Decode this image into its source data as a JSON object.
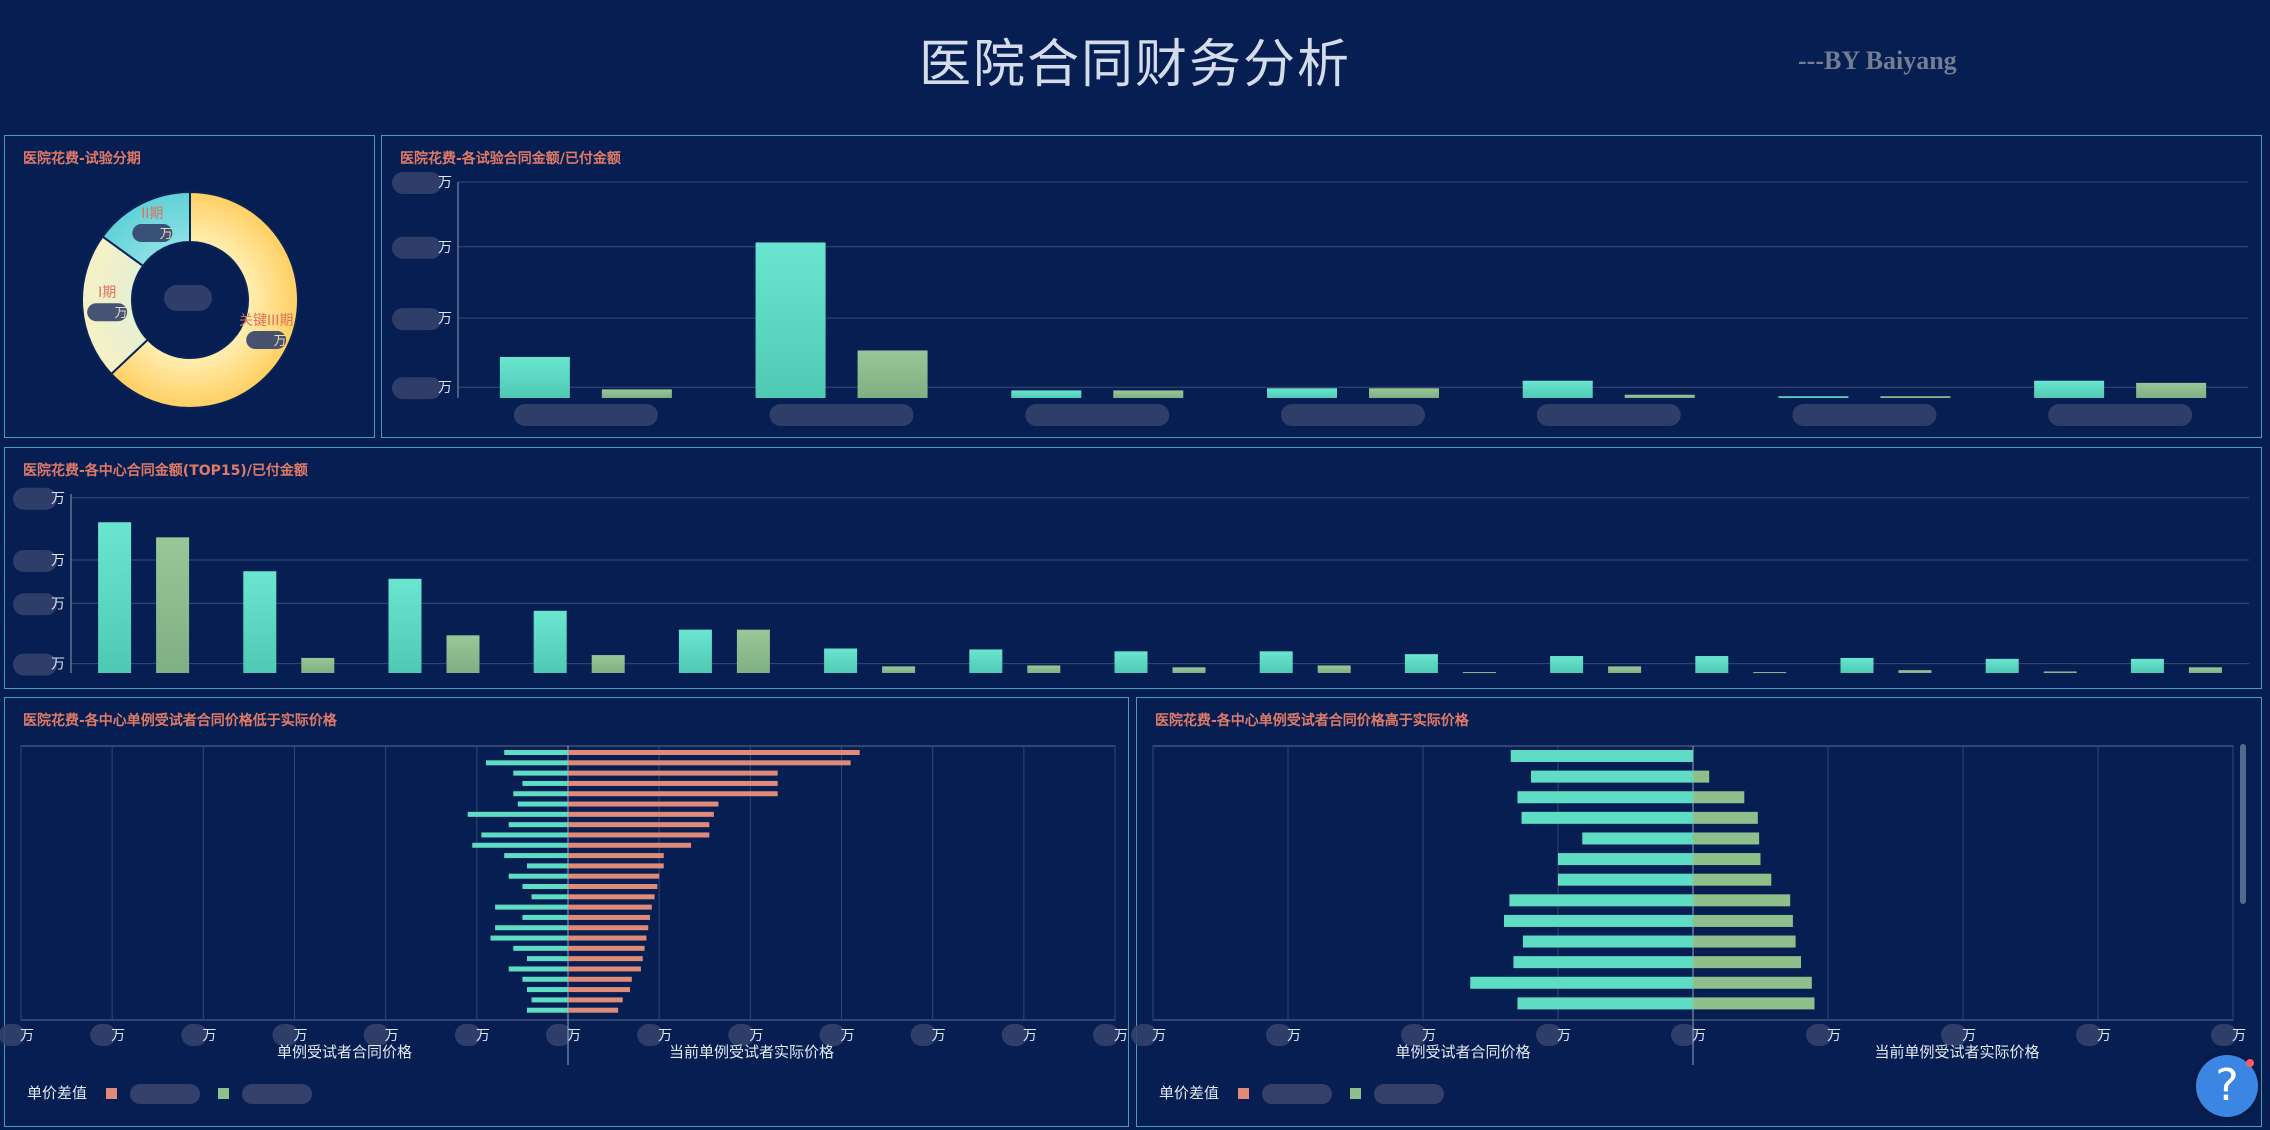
{
  "header": {
    "title": "医院合同财务分析",
    "byline": "---BY Baiyang"
  },
  "colors": {
    "background": "#061e52",
    "panel_border": "#4a9fb2",
    "panel_title": "#e07a67",
    "teal": "#5fdcc4",
    "olive": "#8fbf8a",
    "salmon": "#e08a78",
    "gold": "#ffd36b"
  },
  "panels": {
    "donut": {
      "title": "医院花费-试验分期"
    },
    "trials": {
      "title": "医院花费-各试验合同金额/已付金额"
    },
    "centers": {
      "title": "医院花费-各中心合同金额(TOP15)/已付金额"
    },
    "lower": {
      "title": "医院花费-各中心单例受试者合同价格低于实际价格",
      "xlabel_left": "单例受试者合同价格",
      "xlabel_right": "当前单例受试者实际价格",
      "legend_label": "单价差值"
    },
    "higher": {
      "title": "医院花费-各中心单例受试者合同价格高于实际价格",
      "xlabel_left": "单例受试者合同价格",
      "xlabel_right": "当前单例受试者实际价格",
      "legend_label": "单价差值"
    }
  },
  "chart_data": [
    {
      "type": "pie",
      "donut": true,
      "slices": [
        {
          "label": "关键III期",
          "value": 63
        },
        {
          "label": "I期",
          "value": 22
        },
        {
          "label": "II期",
          "value": 15
        }
      ],
      "slice_labels": [
        "关键III期",
        "I期",
        "II期"
      ],
      "value_unit": "万"
    },
    {
      "type": "bar",
      "categories_count": 7,
      "series": [
        {
          "values": [
            19,
            72,
            3.5,
            4.5,
            8,
            0.8,
            8
          ]
        },
        {
          "values": [
            4,
            22,
            3.5,
            4.5,
            1.5,
            0.8,
            7
          ]
        }
      ],
      "ylim": [
        0,
        100
      ],
      "ytick_unit": "万"
    },
    {
      "type": "bar",
      "categories_count": 15,
      "series": [
        {
          "values": [
            80,
            54,
            50,
            33,
            23,
            13,
            12.5,
            11.5,
            11.5,
            10,
            9,
            9,
            8,
            7.5,
            7.5
          ]
        },
        {
          "values": [
            72,
            8,
            20,
            9.5,
            23,
            3.5,
            4,
            3,
            4,
            0.5,
            3.5,
            0.5,
            1.5,
            0.8,
            3
          ]
        }
      ],
      "ylim": [
        0,
        95
      ],
      "ytick_unit": "万"
    },
    {
      "type": "bar",
      "orientation": "horizontal-diverging",
      "series": [
        {
          "name": "单例受试者合同价格",
          "values": [
            0.7,
            0.9,
            0.6,
            0.5,
            0.6,
            0.55,
            1.1,
            0.65,
            0.95,
            1.05,
            0.7,
            0.45,
            0.65,
            0.5,
            0.4,
            0.8,
            0.5,
            0.8,
            0.85,
            0.6,
            0.45,
            0.65,
            0.5,
            0.45,
            0.4,
            0.45
          ]
        },
        {
          "name": "当前单例受试者实际价格",
          "values": [
            3.2,
            3.1,
            2.3,
            2.3,
            2.3,
            1.65,
            1.6,
            1.55,
            1.55,
            1.35,
            1.05,
            1.05,
            1.0,
            0.98,
            0.95,
            0.92,
            0.9,
            0.88,
            0.86,
            0.84,
            0.82,
            0.8,
            0.7,
            0.68,
            0.6,
            0.55
          ]
        }
      ],
      "xlim": [
        -6,
        6
      ],
      "xtick_unit": "万"
    },
    {
      "type": "bar",
      "orientation": "horizontal-diverging",
      "series": [
        {
          "name": "单例受试者合同价格",
          "values": [
            1.35,
            1.2,
            1.3,
            1.27,
            0.82,
            1.0,
            1.0,
            1.36,
            1.4,
            1.26,
            1.33,
            1.65,
            1.3
          ]
        },
        {
          "name": "当前单例受试者实际价格",
          "values": [
            0.0,
            0.12,
            0.38,
            0.48,
            0.49,
            0.5,
            0.58,
            0.72,
            0.74,
            0.76,
            0.8,
            0.88,
            0.9
          ]
        }
      ],
      "xlim": [
        -4,
        4
      ],
      "xtick_unit": "万"
    }
  ]
}
